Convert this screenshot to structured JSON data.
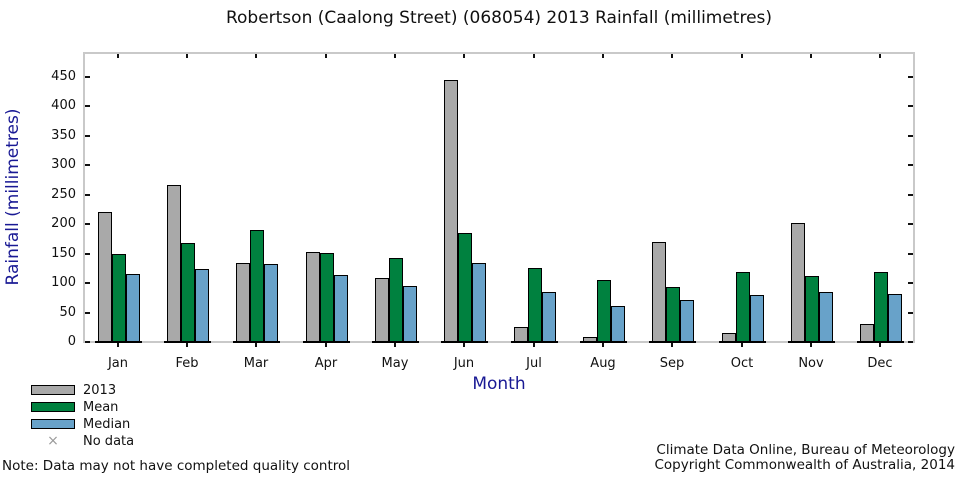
{
  "title": "Robertson (Caalong Street) (068054) 2013 Rainfall (millimetres)",
  "chart_data": {
    "type": "bar",
    "title": "Robertson (Caalong Street) (068054) 2013 Rainfall (millimetres)",
    "xlabel": "Month",
    "ylabel": "Rainfall (millimetres)",
    "ylim": [
      0,
      494
    ],
    "yticks": [
      0,
      50,
      100,
      150,
      200,
      250,
      300,
      350,
      400,
      450
    ],
    "grid": false,
    "legend_position": "bottom-left",
    "categories": [
      "Jan",
      "Feb",
      "Mar",
      "Apr",
      "May",
      "Jun",
      "Jul",
      "Aug",
      "Sep",
      "Oct",
      "Nov",
      "Dec"
    ],
    "series": [
      {
        "name": "2013",
        "color": "#a9a9a9",
        "values": [
          221,
          266,
          134,
          152,
          108,
          445,
          25,
          8,
          170,
          15,
          202,
          30
        ]
      },
      {
        "name": "Mean",
        "color": "#00813f",
        "values": [
          149,
          168,
          190,
          151,
          142,
          185,
          126,
          105,
          93,
          119,
          112,
          119
        ]
      },
      {
        "name": "Median",
        "color": "#68a2c9",
        "values": [
          115,
          124,
          133,
          113,
          95,
          134,
          85,
          61,
          71,
          80,
          85,
          81
        ]
      }
    ]
  },
  "legend": {
    "items": [
      {
        "label": "2013",
        "swatch": "#a9a9a9"
      },
      {
        "label": "Mean",
        "swatch": "#00813f"
      },
      {
        "label": "Median",
        "swatch": "#68a2c9"
      },
      {
        "label": "No data",
        "marker": "×",
        "marker_color": "#9a9a9a"
      }
    ]
  },
  "footer": {
    "note": "Note: Data may not have completed quality control",
    "credit_line1": "Climate Data Online, Bureau of Meteorology",
    "credit_line2": "Copyright Commonwealth of Australia, 2014"
  },
  "colors": {
    "axis_frame": "#c9c9c9",
    "tick": "#111111",
    "bar_outline": "#000000",
    "label_navy": "#191994",
    "background": "#ffffff"
  }
}
